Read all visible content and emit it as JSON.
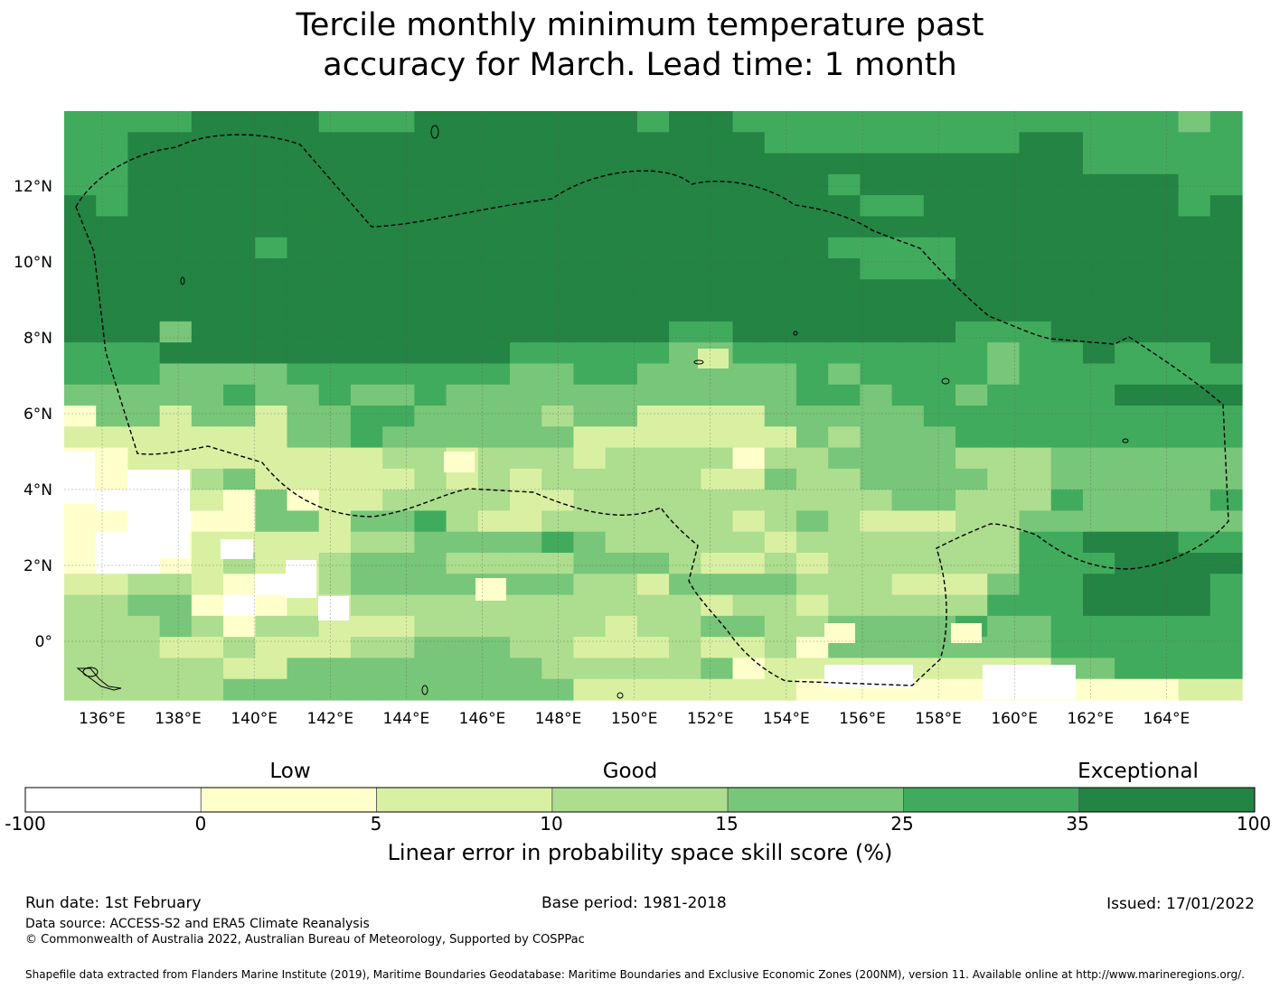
{
  "title": {
    "line1": "Tercile monthly minimum temperature past",
    "line2": "accuracy for March. Lead time: 1 month"
  },
  "map": {
    "lon_range": [
      135,
      166
    ],
    "lat_range": [
      -1.5,
      14
    ],
    "lon_tick_labels": [
      "136°E",
      "138°E",
      "140°E",
      "142°E",
      "144°E",
      "146°E",
      "148°E",
      "150°E",
      "152°E",
      "154°E",
      "156°E",
      "158°E",
      "160°E",
      "162°E",
      "164°E"
    ],
    "lat_tick_labels": [
      "12°N",
      "10°N",
      "8°N",
      "6°N",
      "4°N",
      "2°N",
      "0°"
    ],
    "zone_boundary_style": "dashed"
  },
  "colorbar": {
    "category_words": [
      "Low",
      "Good",
      "Exceptional"
    ],
    "tick_labels": [
      "-100",
      "0",
      "5",
      "10",
      "15",
      "25",
      "35",
      "100"
    ],
    "colors": [
      "#ffffff",
      "#ffffcc",
      "#d9f0a3",
      "#addd8e",
      "#78c679",
      "#41ab5d",
      "#238443"
    ],
    "label": "Linear error in probability space skill score (%)"
  },
  "footer": {
    "run_date": "Run date: 1st February",
    "base_period": "Base period: 1981-2018",
    "issued": "Issued: 17/01/2022",
    "data_source": "Data source: ACCESS-S2 and ERA5 Climate Reanalysis",
    "copyright": "© Commonwealth of Australia 2022, Australian Bureau of Meteorology, Supported by COSPPac",
    "shapefile": "Shapefile data extracted from Flanders Marine Institute (2019), Maritime Boundaries Geodatabase: Maritime Boundaries and Exclusive Economic Zones (200NM), version 11. Available online at http://www.marineregions.org/."
  }
}
